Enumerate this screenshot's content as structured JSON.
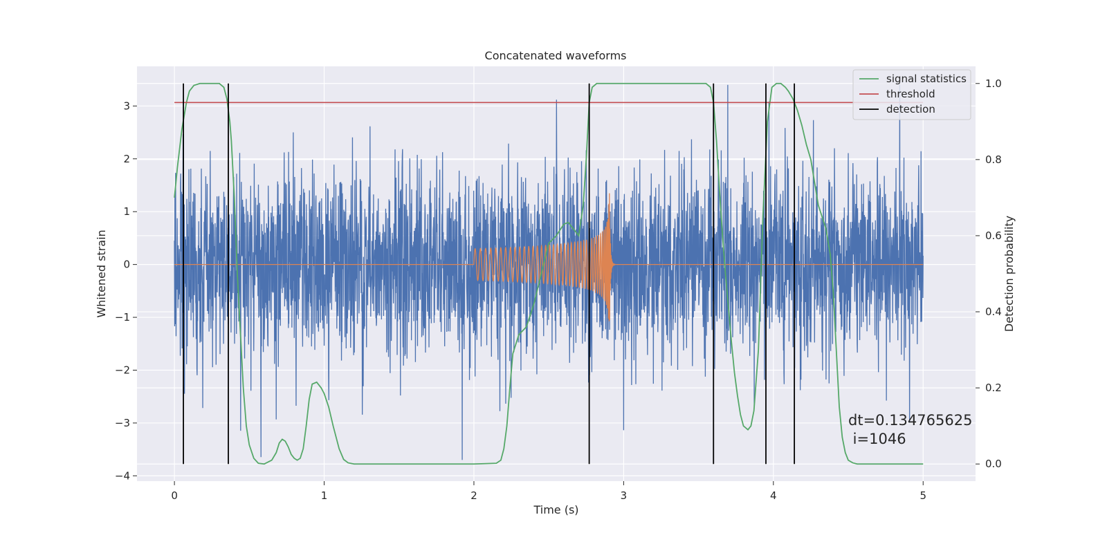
{
  "chart_data": {
    "type": "line",
    "title": "Concatenated waveforms",
    "xlabel": "Time (s)",
    "ylabel": "Whitened strain",
    "y2label": "Detection probability",
    "xlim": [
      -0.25,
      5.35
    ],
    "ylim": [
      -4.1,
      3.75
    ],
    "y2lim": [
      -0.045,
      1.045
    ],
    "x_ticks": [
      0,
      1,
      2,
      3,
      4,
      5
    ],
    "y_ticks": [
      -4,
      -3,
      -2,
      -1,
      0,
      1,
      2,
      3
    ],
    "y2_ticks": [
      0.0,
      0.2,
      0.4,
      0.6,
      0.8,
      1.0
    ],
    "x_tick_labels": [
      "0",
      "1",
      "2",
      "3",
      "4",
      "5"
    ],
    "y_tick_labels": [
      "−4",
      "−3",
      "−2",
      "−1",
      "0",
      "1",
      "2",
      "3"
    ],
    "y2_tick_labels": [
      "0.0",
      "0.2",
      "0.4",
      "0.6",
      "0.8",
      "1.0"
    ],
    "grid": true,
    "legend_position": "top-right",
    "legend": [
      "signal statistics",
      "threshold",
      "detection"
    ],
    "series": [
      {
        "name": "",
        "kind": "noise",
        "axis": "left",
        "color": "#4c72b0",
        "x_range": [
          0,
          5
        ],
        "amplitude_typical": 1.3,
        "min": -3.7,
        "max": 3.4
      },
      {
        "name": "",
        "kind": "chirp",
        "axis": "left",
        "color": "#dd8452",
        "start": 2.0,
        "merger": 2.9,
        "x_range": [
          0,
          5
        ],
        "peak_amplitude": 1.4,
        "min": -1.55
      },
      {
        "name": "signal statistics",
        "axis": "right",
        "color": "#55a868",
        "x": [
          0.0,
          0.02,
          0.05,
          0.08,
          0.1,
          0.13,
          0.17,
          0.2,
          0.25,
          0.3,
          0.33,
          0.35,
          0.37,
          0.38,
          0.4,
          0.42,
          0.44,
          0.46,
          0.48,
          0.5,
          0.53,
          0.56,
          0.6,
          0.65,
          0.68,
          0.7,
          0.72,
          0.74,
          0.76,
          0.78,
          0.8,
          0.82,
          0.84,
          0.86,
          0.88,
          0.9,
          0.92,
          0.95,
          0.98,
          1.0,
          1.03,
          1.06,
          1.1,
          1.13,
          1.16,
          1.2,
          1.3,
          1.5,
          1.8,
          2.0,
          2.15,
          2.18,
          2.2,
          2.22,
          2.24,
          2.26,
          2.3,
          2.35,
          2.4,
          2.45,
          2.5,
          2.55,
          2.6,
          2.63,
          2.66,
          2.7,
          2.73,
          2.75,
          2.77,
          2.79,
          2.82,
          2.85,
          2.9,
          3.0,
          3.2,
          3.4,
          3.55,
          3.58,
          3.6,
          3.62,
          3.64,
          3.66,
          3.68,
          3.7,
          3.72,
          3.74,
          3.76,
          3.78,
          3.8,
          3.83,
          3.85,
          3.87,
          3.9,
          3.93,
          3.96,
          3.99,
          4.02,
          4.05,
          4.08,
          4.1,
          4.13,
          4.16,
          4.19,
          4.22,
          4.25,
          4.3,
          4.35,
          4.38,
          4.4,
          4.42,
          4.44,
          4.46,
          4.48,
          4.5,
          4.53,
          4.56,
          4.6,
          4.7,
          4.85,
          5.0
        ],
        "values": [
          0.7,
          0.78,
          0.88,
          0.95,
          0.98,
          0.995,
          1.0,
          1.0,
          1.0,
          1.0,
          0.99,
          0.96,
          0.9,
          0.85,
          0.7,
          0.5,
          0.35,
          0.2,
          0.1,
          0.05,
          0.015,
          0.002,
          0.0,
          0.01,
          0.03,
          0.055,
          0.065,
          0.06,
          0.045,
          0.025,
          0.015,
          0.01,
          0.015,
          0.04,
          0.1,
          0.17,
          0.21,
          0.215,
          0.2,
          0.185,
          0.15,
          0.1,
          0.04,
          0.012,
          0.003,
          0.0,
          0.0,
          0.0,
          0.0,
          0.0,
          0.002,
          0.01,
          0.04,
          0.1,
          0.2,
          0.29,
          0.34,
          0.36,
          0.42,
          0.5,
          0.58,
          0.6,
          0.63,
          0.635,
          0.62,
          0.6,
          0.68,
          0.8,
          0.95,
          0.99,
          1.0,
          1.0,
          1.0,
          1.0,
          1.0,
          1.0,
          1.0,
          0.99,
          0.95,
          0.85,
          0.72,
          0.6,
          0.5,
          0.41,
          0.32,
          0.24,
          0.18,
          0.13,
          0.1,
          0.09,
          0.1,
          0.14,
          0.3,
          0.65,
          0.9,
          0.99,
          1.0,
          1.0,
          0.99,
          0.98,
          0.96,
          0.93,
          0.89,
          0.84,
          0.8,
          0.68,
          0.62,
          0.55,
          0.45,
          0.3,
          0.15,
          0.07,
          0.03,
          0.01,
          0.003,
          0.0,
          0.0,
          0.0,
          0.0,
          0.0
        ]
      },
      {
        "name": "threshold",
        "axis": "right",
        "color": "#c44e52",
        "x": [
          0,
          5
        ],
        "values": [
          0.95,
          0.95
        ]
      },
      {
        "name": "detection",
        "axis": "right",
        "color": "#000000",
        "x": [
          0.06,
          0.36,
          2.77,
          3.6,
          3.95,
          4.14
        ]
      }
    ],
    "annotations": [
      "dt=0.134765625",
      " i=1046"
    ]
  }
}
